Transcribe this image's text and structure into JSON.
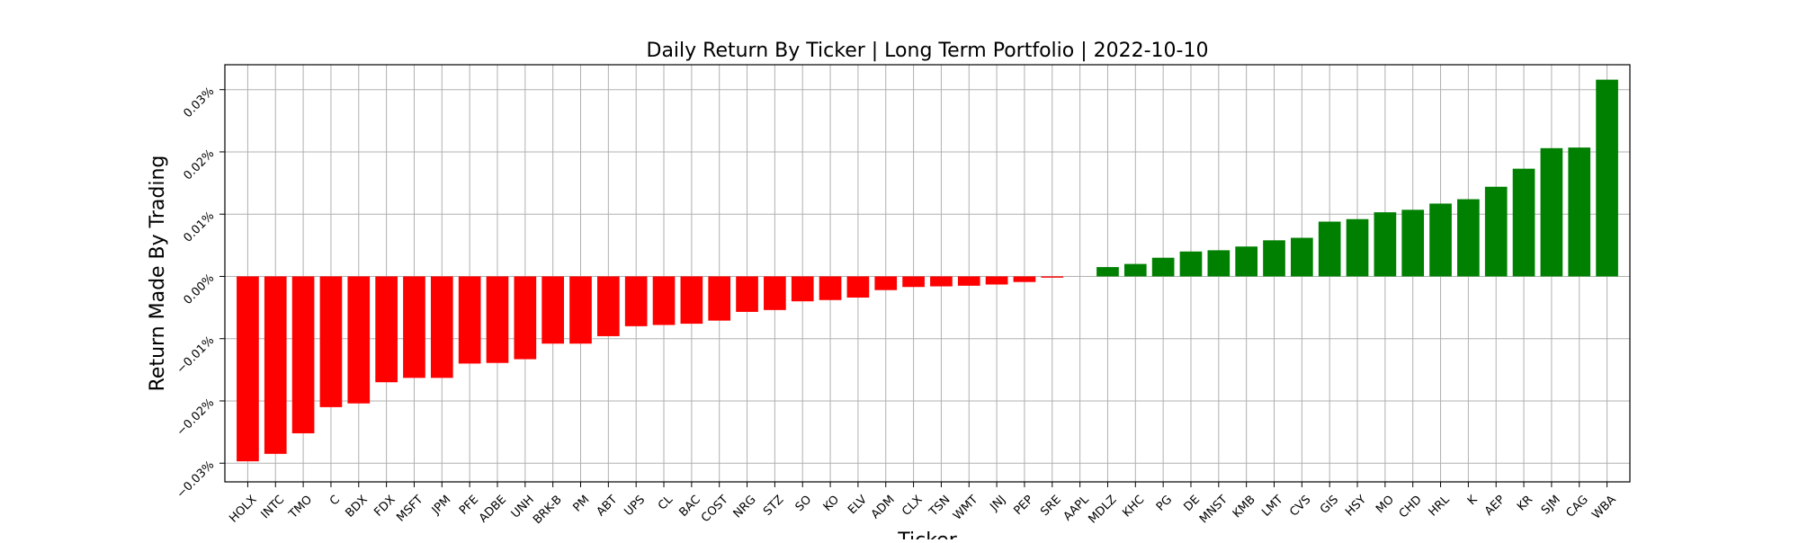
{
  "chart_data": {
    "type": "bar",
    "title": "Daily Return By Ticker | Long Term Portfolio | 2022-10-10",
    "xlabel": "Ticker",
    "ylabel": "Return Made By Trading",
    "ylim": [
      -0.00033,
      0.00034
    ],
    "yticks": [
      -0.0003,
      -0.0002,
      -0.0001,
      0.0,
      0.0001,
      0.0002,
      0.0003
    ],
    "ytick_labels": [
      "−0.03%",
      "−0.02%",
      "−0.01%",
      "0.00%",
      "0.01%",
      "0.02%",
      "0.03%"
    ],
    "grid": true,
    "categories": [
      "HOLX",
      "INTC",
      "TMO",
      "C",
      "BDX",
      "FDX",
      "MSFT",
      "JPM",
      "PFE",
      "ADBE",
      "UNH",
      "BRK-B",
      "PM",
      "ABT",
      "UPS",
      "CL",
      "BAC",
      "COST",
      "NRG",
      "STZ",
      "SO",
      "KO",
      "ELV",
      "ADM",
      "CLX",
      "TSN",
      "WMT",
      "JNJ",
      "PEP",
      "SRE",
      "AAPL",
      "MDLZ",
      "KHC",
      "PG",
      "DE",
      "MNST",
      "KMB",
      "LMT",
      "CVS",
      "GIS",
      "HSY",
      "MO",
      "CHD",
      "HRL",
      "K",
      "AEP",
      "KR",
      "SJM",
      "CAG",
      "WBA"
    ],
    "values": [
      -0.000297,
      -0.000285,
      -0.000252,
      -0.00021,
      -0.000204,
      -0.00017,
      -0.000163,
      -0.000163,
      -0.00014,
      -0.000139,
      -0.000133,
      -0.000108,
      -0.000108,
      -9.6e-05,
      -8e-05,
      -7.8e-05,
      -7.6e-05,
      -7.1e-05,
      -5.7e-05,
      -5.4e-05,
      -4e-05,
      -3.8e-05,
      -3.4e-05,
      -2.2e-05,
      -1.7e-05,
      -1.6e-05,
      -1.5e-05,
      -1.3e-05,
      -9e-06,
      -2e-06,
      0.0,
      1.5e-05,
      2e-05,
      3e-05,
      4e-05,
      4.2e-05,
      4.8e-05,
      5.8e-05,
      6.2e-05,
      8.8e-05,
      9.2e-05,
      0.000103,
      0.000107,
      0.000117,
      0.000124,
      0.000144,
      0.000173,
      0.000206,
      0.000207,
      0.000316
    ],
    "positive_color": "#008000",
    "negative_color": "#ff0000",
    "grid_color": "#b0b0b0"
  }
}
